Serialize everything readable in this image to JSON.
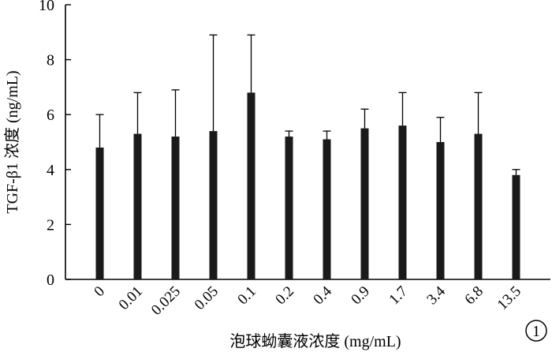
{
  "chart_data": {
    "type": "bar",
    "title": "",
    "xlabel": "泡球蚴囊液浓度 (mg/mL)",
    "ylabel": "TGF-β1 浓度 (ng/mL)",
    "categories": [
      "0",
      "0.01",
      "0.025",
      "0.05",
      "0.1",
      "0.2",
      "0.4",
      "0.9",
      "1.7",
      "3.4",
      "6.8",
      "13.5"
    ],
    "values": [
      4.8,
      5.3,
      5.2,
      5.4,
      6.8,
      5.2,
      5.1,
      5.5,
      5.6,
      5.0,
      5.3,
      3.8
    ],
    "errors": [
      1.2,
      1.5,
      1.7,
      3.5,
      2.1,
      0.2,
      0.3,
      0.7,
      1.2,
      0.9,
      1.5,
      0.2
    ],
    "ylim": [
      0,
      10
    ],
    "yticks": [
      "0",
      "2",
      "4",
      "6",
      "8",
      "10"
    ],
    "grid": false,
    "bar_color": "#1a1a1a",
    "panel_label": "1"
  }
}
